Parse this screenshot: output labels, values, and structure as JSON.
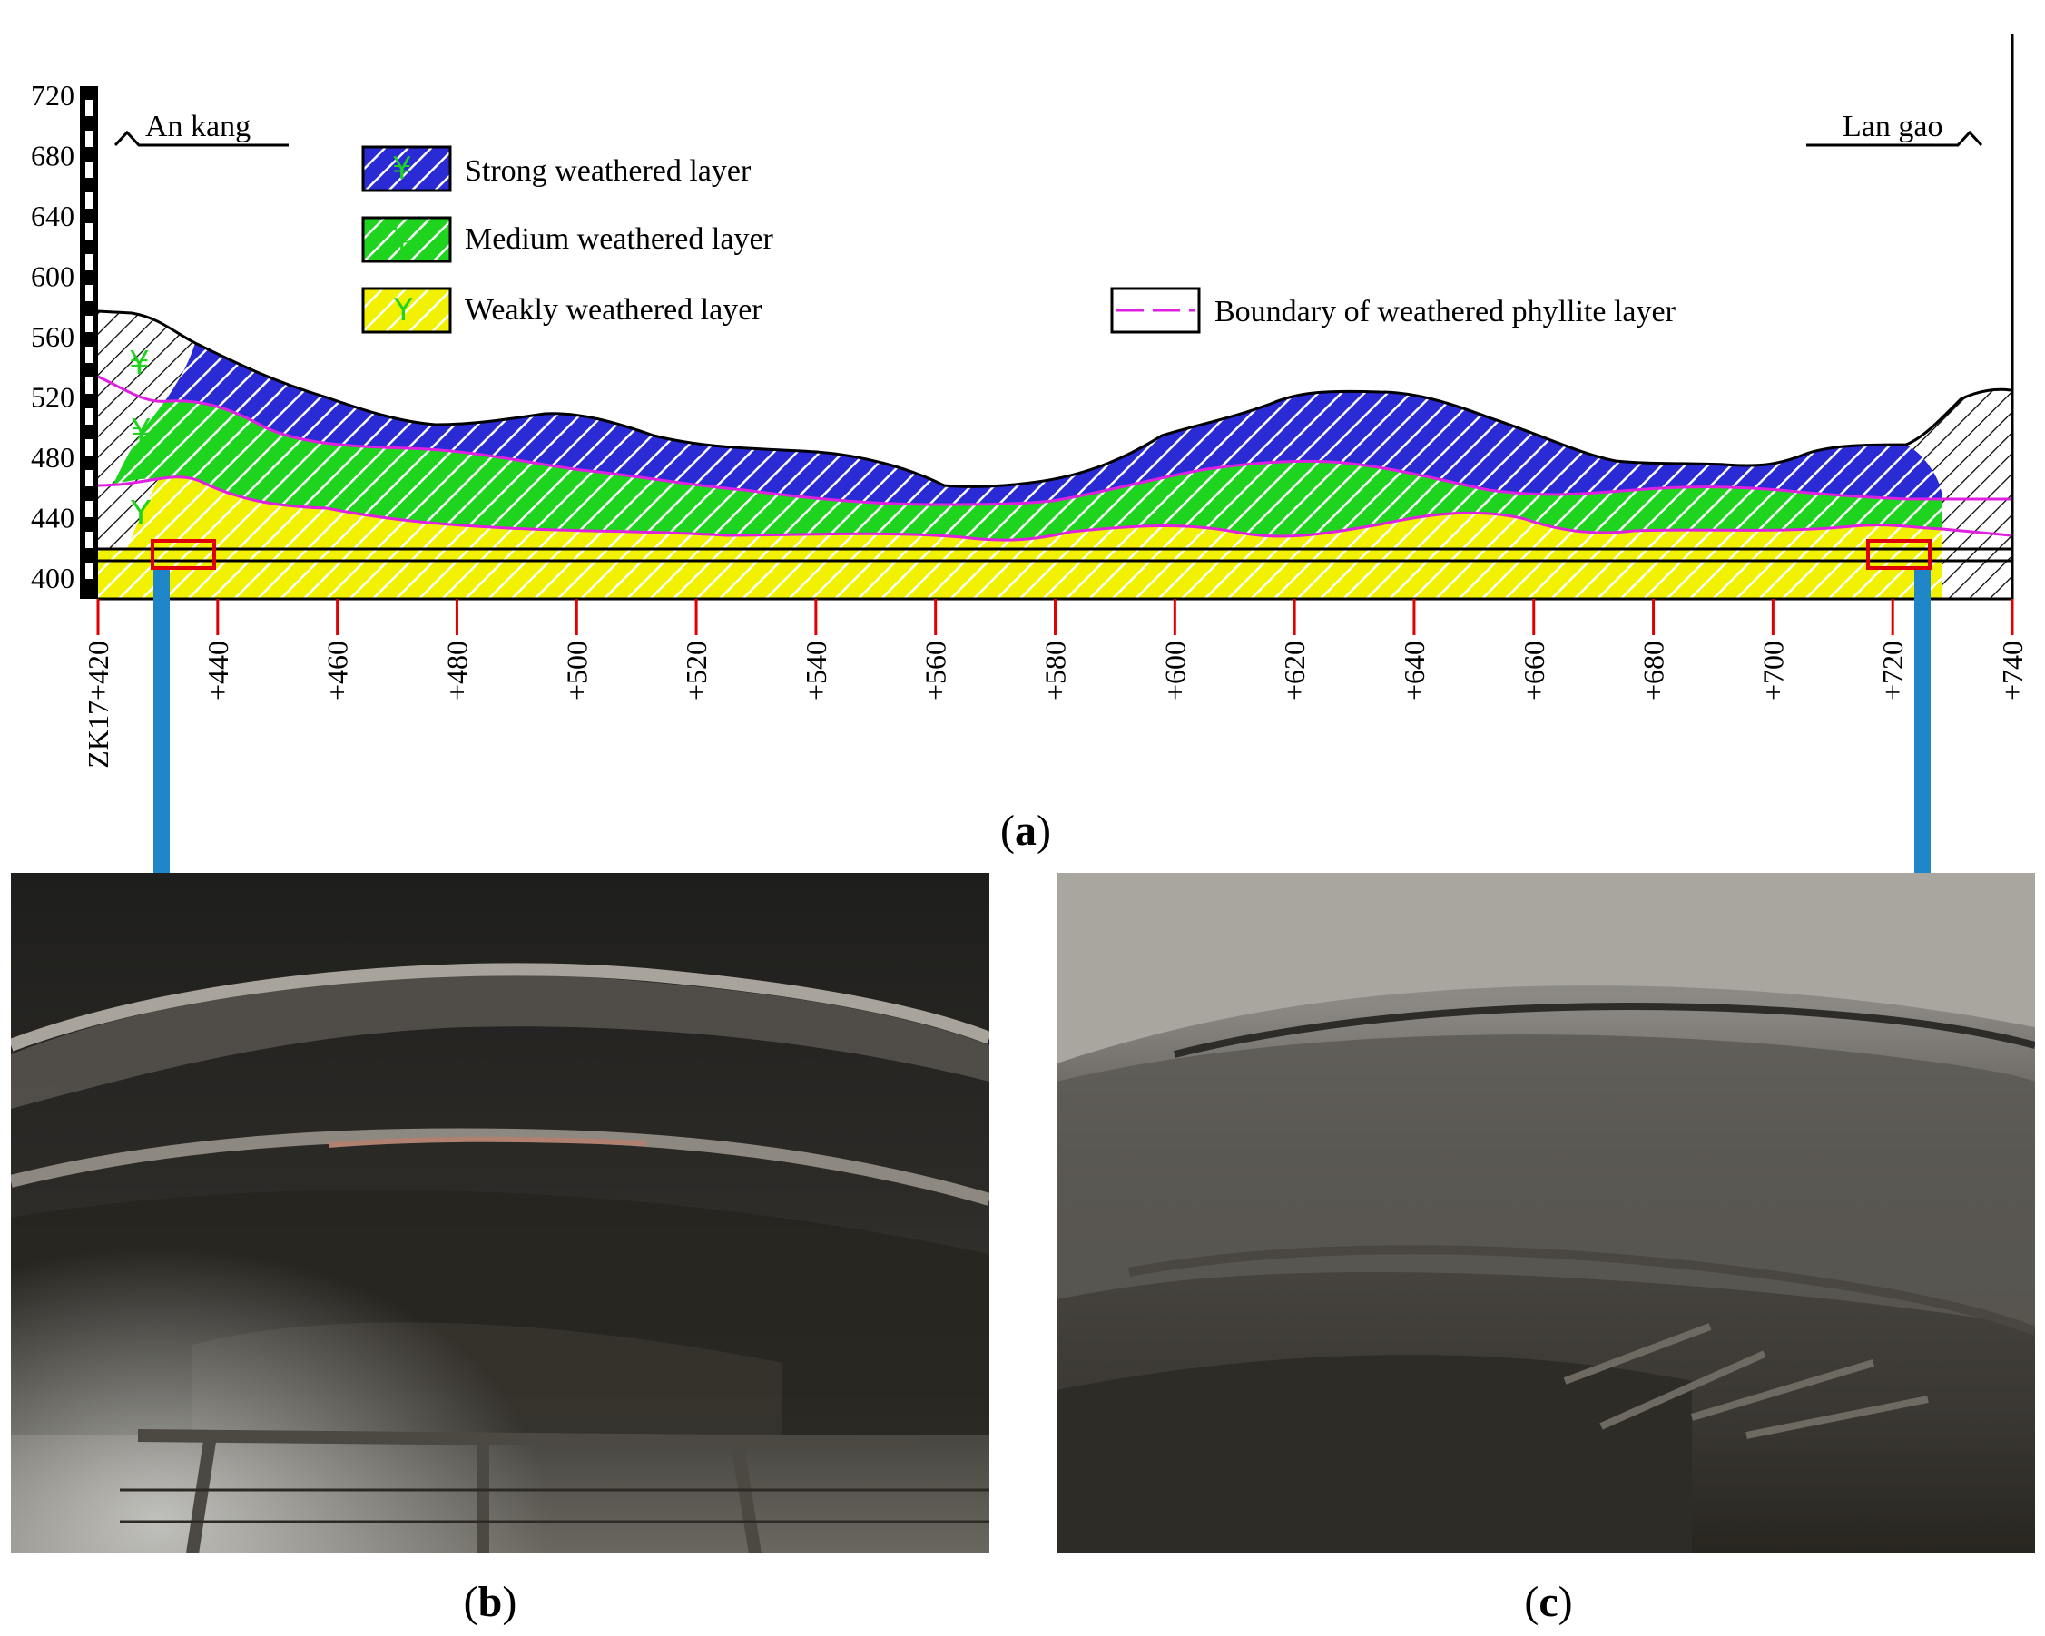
{
  "section": {
    "y_ticks": [
      "720",
      "680",
      "640",
      "600",
      "560",
      "520",
      "480",
      "440",
      "400"
    ],
    "x_ticks": [
      "ZK17+420",
      "+440",
      "+460",
      "+480",
      "+500",
      "+520",
      "+540",
      "+560",
      "+580",
      "+600",
      "+620",
      "+640",
      "+660",
      "+680",
      "+700",
      "+720",
      "+740"
    ],
    "left_label": "An kang",
    "right_label": "Lan gao",
    "legend": {
      "strong": "Strong weathered layer",
      "medium": "Medium weathered layer",
      "weak": "Weakly weathered layer",
      "boundary": "Boundary of weathered phyllite layer"
    },
    "colors": {
      "strong": "#2b2bd6",
      "medium": "#1fd41f",
      "weak": "#f2f200",
      "boundary": "#e020e0",
      "marker": "#e00000",
      "arrow": "#1f86c8"
    }
  },
  "captions": {
    "a": "a",
    "b": "b",
    "c": "c"
  }
}
